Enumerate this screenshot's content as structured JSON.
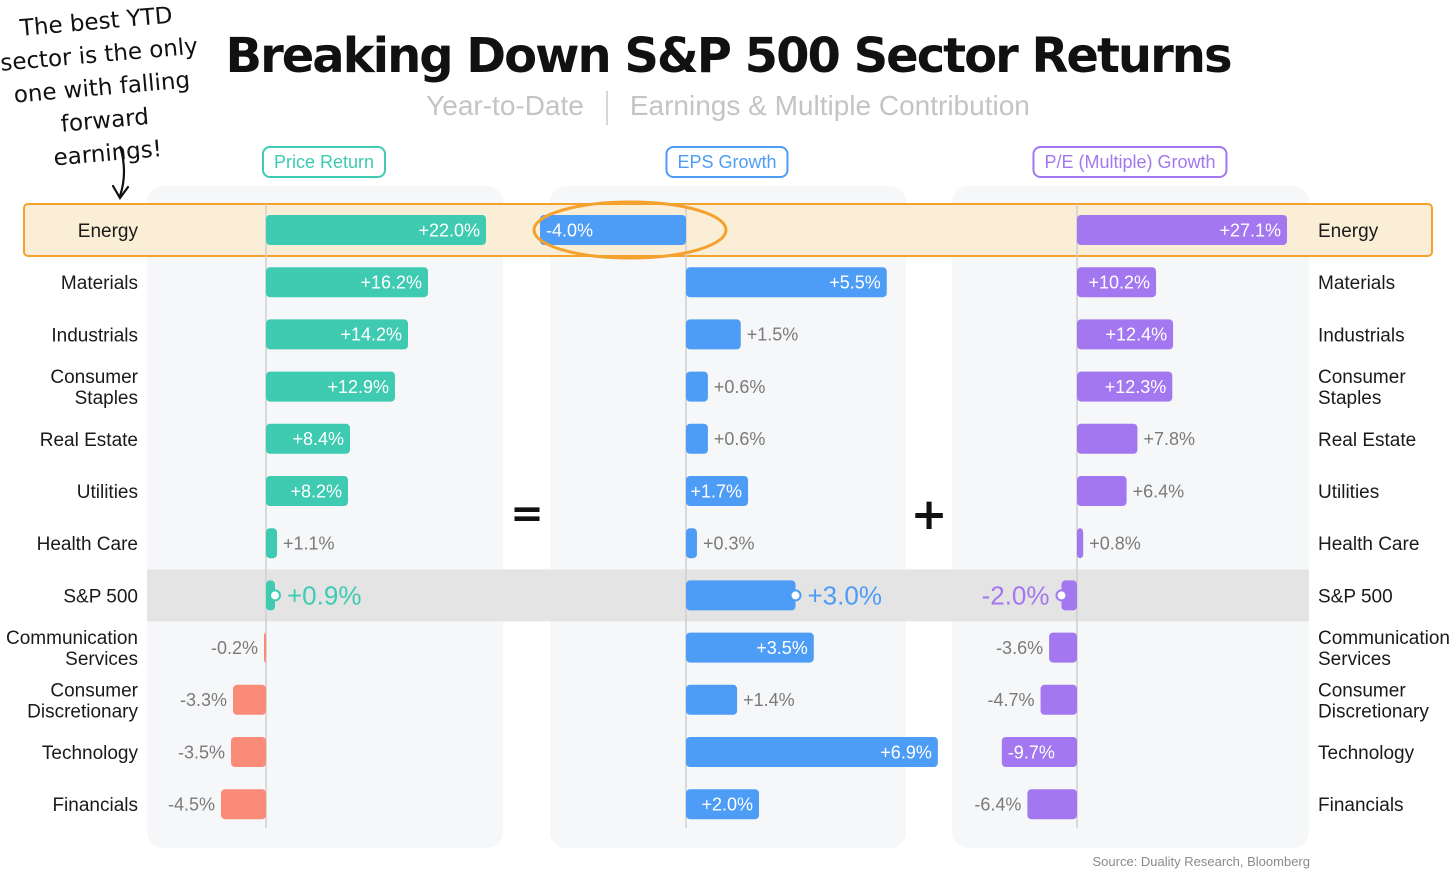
{
  "annotation": "The best YTD sector is the only one with falling forward earnings!",
  "chart_data": {
    "type": "bar",
    "title": "Breaking Down S&P 500 Sector Returns",
    "subtitle": [
      "Year-to-Date",
      "Earnings & Multiple Contribution"
    ],
    "categories": [
      "Energy",
      "Materials",
      "Industrials",
      "Consumer Staples",
      "Real Estate",
      "Utilities",
      "Health Care",
      "S&P 500",
      "Communication Services",
      "Consumer Discretionary",
      "Technology",
      "Financials"
    ],
    "category_lines": [
      [
        "Energy"
      ],
      [
        "Materials"
      ],
      [
        "Industrials"
      ],
      [
        "Consumer",
        "Staples"
      ],
      [
        "Real Estate"
      ],
      [
        "Utilities"
      ],
      [
        "Health Care"
      ],
      [
        "S&P 500"
      ],
      [
        "Communication",
        "Services"
      ],
      [
        "Consumer",
        "Discretionary"
      ],
      [
        "Technology"
      ],
      [
        "Financials"
      ]
    ],
    "operators": [
      "=",
      "+"
    ],
    "series": [
      {
        "name": "Price Return",
        "values": [
          22.0,
          16.2,
          14.2,
          12.9,
          8.4,
          8.2,
          1.1,
          0.9,
          -0.2,
          -3.3,
          -3.5,
          -4.5
        ],
        "labels": [
          "+22.0%",
          "+16.2%",
          "+14.2%",
          "+12.9%",
          "+8.4%",
          "+8.2%",
          "+1.1%",
          "+0.9%",
          "-0.2%",
          "-3.3%",
          "-3.5%",
          "-4.5%"
        ]
      },
      {
        "name": "EPS Growth",
        "values": [
          -4.0,
          5.5,
          1.5,
          0.6,
          0.6,
          1.7,
          0.3,
          3.0,
          3.5,
          1.4,
          6.9,
          2.0
        ],
        "labels": [
          "-4.0%",
          "+5.5%",
          "+1.5%",
          "+0.6%",
          "+0.6%",
          "+1.7%",
          "+0.3%",
          "+3.0%",
          "+3.5%",
          "+1.4%",
          "+6.9%",
          "+2.0%"
        ]
      },
      {
        "name": "P/E (Multiple) Growth",
        "values": [
          27.1,
          10.2,
          12.4,
          12.3,
          7.8,
          6.4,
          0.8,
          -2.0,
          -3.6,
          -4.7,
          -9.7,
          -6.4
        ],
        "labels": [
          "+27.1%",
          "+10.2%",
          "+12.4%",
          "+12.3%",
          "+7.8%",
          "+6.4%",
          "+0.8%",
          "-2.0%",
          "-3.6%",
          "-4.7%",
          "-9.7%",
          "-6.4%"
        ]
      }
    ],
    "highlight": [
      "Energy",
      "S&P 500"
    ],
    "colors": {
      "price_positive": "#3ecbb2",
      "price_negative": "#f98b78",
      "eps": "#4d9cf5",
      "pe": "#a277f0",
      "highlight_band": "#fbeed6",
      "highlight_border": "#f4a12e",
      "sp500_row": "#e4e4e4",
      "panel_bg": "#f6f7f9"
    },
    "legend_position": "top",
    "grid": false
  },
  "source": "Source: Duality Research, Bloomberg"
}
